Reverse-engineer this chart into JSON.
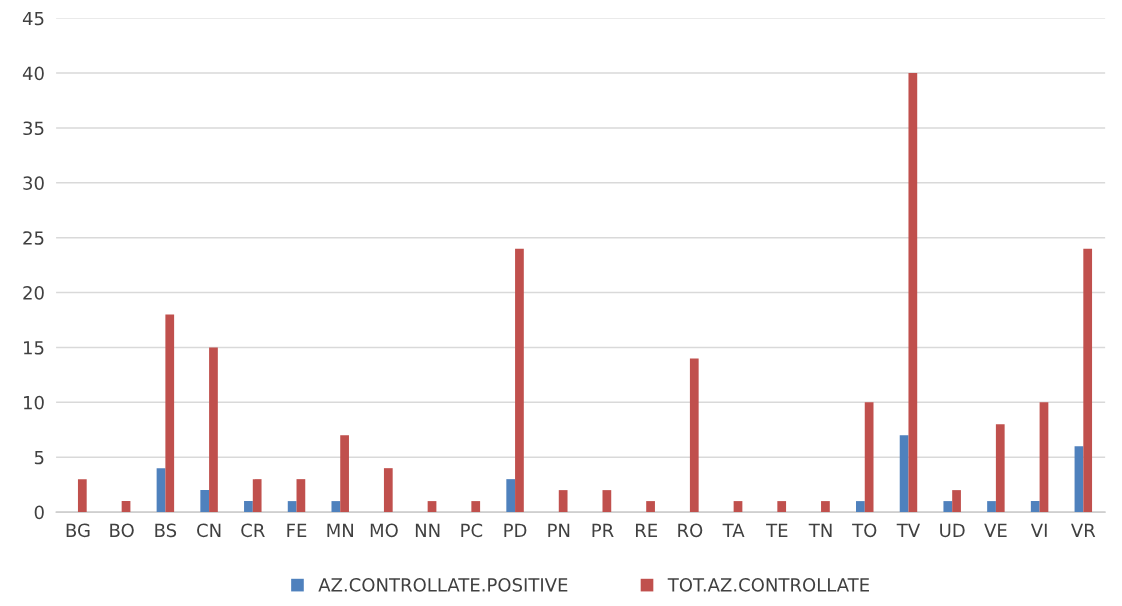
{
  "chart_data": {
    "type": "bar",
    "categories": [
      "BG",
      "BO",
      "BS",
      "CN",
      "CR",
      "FE",
      "MN",
      "MO",
      "NN",
      "PC",
      "PD",
      "PN",
      "PR",
      "RE",
      "RO",
      "TA",
      "TE",
      "TN",
      "TO",
      "TV",
      "UD",
      "VE",
      "VI",
      "VR"
    ],
    "series": [
      {
        "name": "AZ.CONTROLLATE.POSITIVE",
        "color": "#4f81bd",
        "values": [
          0,
          0,
          4,
          2,
          1,
          1,
          1,
          0,
          0,
          0,
          3,
          0,
          0,
          0,
          0,
          0,
          0,
          0,
          1,
          7,
          1,
          1,
          1,
          6
        ]
      },
      {
        "name": "TOT.AZ.CONTROLLATE",
        "color": "#c0504d",
        "values": [
          3,
          1,
          18,
          15,
          3,
          3,
          7,
          4,
          1,
          1,
          24,
          2,
          2,
          1,
          14,
          1,
          1,
          1,
          10,
          40,
          2,
          8,
          10,
          24
        ]
      }
    ],
    "ylim": [
      0,
      45
    ],
    "yticks": [
      0,
      5,
      10,
      15,
      20,
      25,
      30,
      35,
      40,
      45
    ],
    "grid": "y",
    "legend": "bottom"
  }
}
